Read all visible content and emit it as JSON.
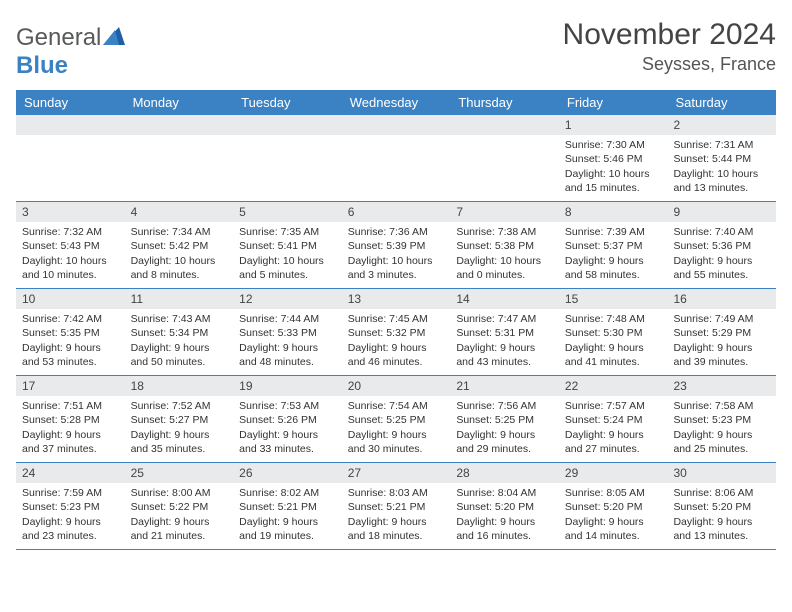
{
  "brand": {
    "part1": "General",
    "part2": "Blue"
  },
  "title": "November 2024",
  "subtitle": "Seysses, France",
  "colors": {
    "accent": "#3a82c4",
    "header_strip": "#e8eaec",
    "text": "#333333",
    "title_text": "#444444"
  },
  "day_headers": [
    "Sunday",
    "Monday",
    "Tuesday",
    "Wednesday",
    "Thursday",
    "Friday",
    "Saturday"
  ],
  "weeks": [
    [
      {
        "n": "",
        "sr": "",
        "ss": "",
        "dl": ""
      },
      {
        "n": "",
        "sr": "",
        "ss": "",
        "dl": ""
      },
      {
        "n": "",
        "sr": "",
        "ss": "",
        "dl": ""
      },
      {
        "n": "",
        "sr": "",
        "ss": "",
        "dl": ""
      },
      {
        "n": "",
        "sr": "",
        "ss": "",
        "dl": ""
      },
      {
        "n": "1",
        "sr": "Sunrise: 7:30 AM",
        "ss": "Sunset: 5:46 PM",
        "dl": "Daylight: 10 hours and 15 minutes."
      },
      {
        "n": "2",
        "sr": "Sunrise: 7:31 AM",
        "ss": "Sunset: 5:44 PM",
        "dl": "Daylight: 10 hours and 13 minutes."
      }
    ],
    [
      {
        "n": "3",
        "sr": "Sunrise: 7:32 AM",
        "ss": "Sunset: 5:43 PM",
        "dl": "Daylight: 10 hours and 10 minutes."
      },
      {
        "n": "4",
        "sr": "Sunrise: 7:34 AM",
        "ss": "Sunset: 5:42 PM",
        "dl": "Daylight: 10 hours and 8 minutes."
      },
      {
        "n": "5",
        "sr": "Sunrise: 7:35 AM",
        "ss": "Sunset: 5:41 PM",
        "dl": "Daylight: 10 hours and 5 minutes."
      },
      {
        "n": "6",
        "sr": "Sunrise: 7:36 AM",
        "ss": "Sunset: 5:39 PM",
        "dl": "Daylight: 10 hours and 3 minutes."
      },
      {
        "n": "7",
        "sr": "Sunrise: 7:38 AM",
        "ss": "Sunset: 5:38 PM",
        "dl": "Daylight: 10 hours and 0 minutes."
      },
      {
        "n": "8",
        "sr": "Sunrise: 7:39 AM",
        "ss": "Sunset: 5:37 PM",
        "dl": "Daylight: 9 hours and 58 minutes."
      },
      {
        "n": "9",
        "sr": "Sunrise: 7:40 AM",
        "ss": "Sunset: 5:36 PM",
        "dl": "Daylight: 9 hours and 55 minutes."
      }
    ],
    [
      {
        "n": "10",
        "sr": "Sunrise: 7:42 AM",
        "ss": "Sunset: 5:35 PM",
        "dl": "Daylight: 9 hours and 53 minutes."
      },
      {
        "n": "11",
        "sr": "Sunrise: 7:43 AM",
        "ss": "Sunset: 5:34 PM",
        "dl": "Daylight: 9 hours and 50 minutes."
      },
      {
        "n": "12",
        "sr": "Sunrise: 7:44 AM",
        "ss": "Sunset: 5:33 PM",
        "dl": "Daylight: 9 hours and 48 minutes."
      },
      {
        "n": "13",
        "sr": "Sunrise: 7:45 AM",
        "ss": "Sunset: 5:32 PM",
        "dl": "Daylight: 9 hours and 46 minutes."
      },
      {
        "n": "14",
        "sr": "Sunrise: 7:47 AM",
        "ss": "Sunset: 5:31 PM",
        "dl": "Daylight: 9 hours and 43 minutes."
      },
      {
        "n": "15",
        "sr": "Sunrise: 7:48 AM",
        "ss": "Sunset: 5:30 PM",
        "dl": "Daylight: 9 hours and 41 minutes."
      },
      {
        "n": "16",
        "sr": "Sunrise: 7:49 AM",
        "ss": "Sunset: 5:29 PM",
        "dl": "Daylight: 9 hours and 39 minutes."
      }
    ],
    [
      {
        "n": "17",
        "sr": "Sunrise: 7:51 AM",
        "ss": "Sunset: 5:28 PM",
        "dl": "Daylight: 9 hours and 37 minutes."
      },
      {
        "n": "18",
        "sr": "Sunrise: 7:52 AM",
        "ss": "Sunset: 5:27 PM",
        "dl": "Daylight: 9 hours and 35 minutes."
      },
      {
        "n": "19",
        "sr": "Sunrise: 7:53 AM",
        "ss": "Sunset: 5:26 PM",
        "dl": "Daylight: 9 hours and 33 minutes."
      },
      {
        "n": "20",
        "sr": "Sunrise: 7:54 AM",
        "ss": "Sunset: 5:25 PM",
        "dl": "Daylight: 9 hours and 30 minutes."
      },
      {
        "n": "21",
        "sr": "Sunrise: 7:56 AM",
        "ss": "Sunset: 5:25 PM",
        "dl": "Daylight: 9 hours and 29 minutes."
      },
      {
        "n": "22",
        "sr": "Sunrise: 7:57 AM",
        "ss": "Sunset: 5:24 PM",
        "dl": "Daylight: 9 hours and 27 minutes."
      },
      {
        "n": "23",
        "sr": "Sunrise: 7:58 AM",
        "ss": "Sunset: 5:23 PM",
        "dl": "Daylight: 9 hours and 25 minutes."
      }
    ],
    [
      {
        "n": "24",
        "sr": "Sunrise: 7:59 AM",
        "ss": "Sunset: 5:23 PM",
        "dl": "Daylight: 9 hours and 23 minutes."
      },
      {
        "n": "25",
        "sr": "Sunrise: 8:00 AM",
        "ss": "Sunset: 5:22 PM",
        "dl": "Daylight: 9 hours and 21 minutes."
      },
      {
        "n": "26",
        "sr": "Sunrise: 8:02 AM",
        "ss": "Sunset: 5:21 PM",
        "dl": "Daylight: 9 hours and 19 minutes."
      },
      {
        "n": "27",
        "sr": "Sunrise: 8:03 AM",
        "ss": "Sunset: 5:21 PM",
        "dl": "Daylight: 9 hours and 18 minutes."
      },
      {
        "n": "28",
        "sr": "Sunrise: 8:04 AM",
        "ss": "Sunset: 5:20 PM",
        "dl": "Daylight: 9 hours and 16 minutes."
      },
      {
        "n": "29",
        "sr": "Sunrise: 8:05 AM",
        "ss": "Sunset: 5:20 PM",
        "dl": "Daylight: 9 hours and 14 minutes."
      },
      {
        "n": "30",
        "sr": "Sunrise: 8:06 AM",
        "ss": "Sunset: 5:20 PM",
        "dl": "Daylight: 9 hours and 13 minutes."
      }
    ]
  ]
}
